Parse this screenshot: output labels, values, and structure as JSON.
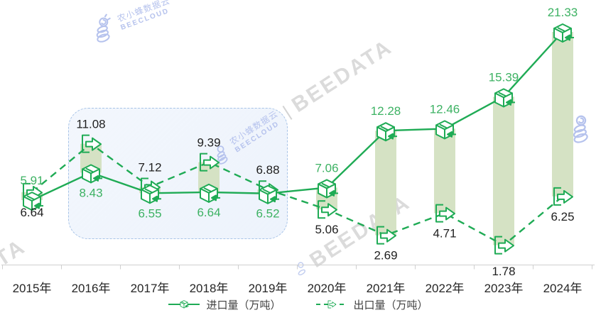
{
  "chart_data": {
    "type": "line",
    "categories": [
      "2015年",
      "2016年",
      "2017年",
      "2018年",
      "2019年",
      "2020年",
      "2021年",
      "2022年",
      "2023年",
      "2024年"
    ],
    "series": [
      {
        "name": "进口量（万吨）",
        "line_style": "solid",
        "marker": "import-box-icon",
        "values": [
          5.91,
          8.43,
          6.55,
          6.64,
          6.52,
          7.06,
          12.28,
          12.46,
          15.39,
          21.33
        ],
        "label_color": "#3db263",
        "label_side": [
          "above",
          "below",
          "below",
          "below",
          "below",
          "above",
          "above",
          "above",
          "above",
          "above"
        ]
      },
      {
        "name": "出口量（万吨）",
        "line_style": "dashed",
        "marker": "export-box-icon",
        "values": [
          6.64,
          11.08,
          7.12,
          9.39,
          6.88,
          5.06,
          2.69,
          4.71,
          1.78,
          6.25
        ],
        "label_color": "#1f1f1f",
        "label_side": [
          "below",
          "above",
          "above",
          "above",
          "above",
          "below",
          "below",
          "below",
          "below",
          "below"
        ]
      }
    ],
    "range_bars_between_series": true,
    "highlight_region_categories": [
      "2016年",
      "2019年"
    ],
    "legend": [
      "进口量（万吨）",
      "出口量（万吨）"
    ],
    "legend_position": "bottom",
    "ylim": [
      0,
      22
    ],
    "grid": false
  },
  "watermarks": {
    "brand_cn": "农小蜂数据云",
    "brand_en": "BEECLOUD",
    "beedata": "BEEDATA",
    "separator": "|"
  },
  "colors": {
    "line_green": "#1fab55",
    "value_label_green": "#3db263",
    "value_label_dark": "#1f1f1f",
    "range_bar": "#d5e2c4",
    "axis": "#cfcfcf",
    "year_label": "#262626",
    "highlight_border": "#a7c3e7",
    "watermark_blue": "#b5c2ed",
    "watermark_gray": "#dbdbdb"
  }
}
